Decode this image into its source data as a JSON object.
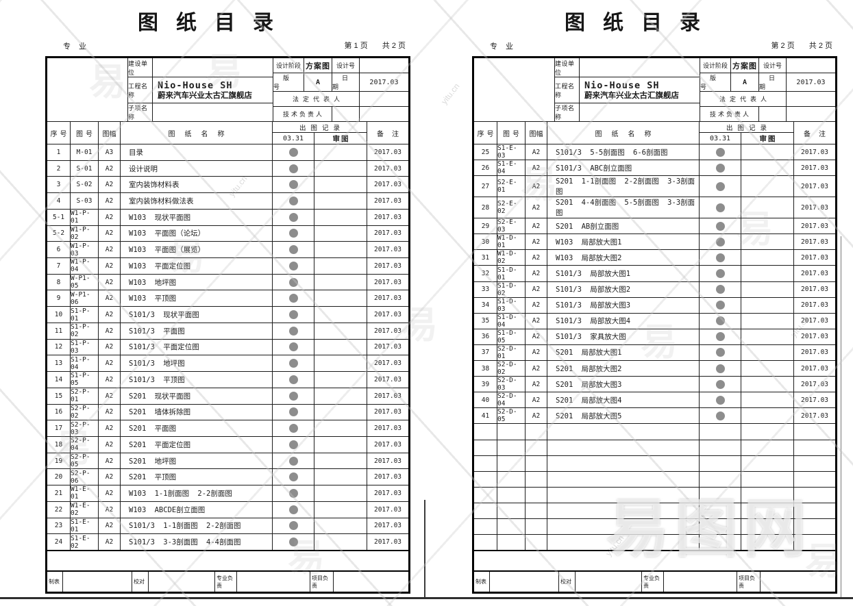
{
  "shared": {
    "title": "图纸目录",
    "specialty_label": "专业",
    "header": {
      "construction_unit_label": "建设单位",
      "project_name_label": "工程名称",
      "project_name_line1": "Nio-House SH",
      "project_name_line2": "蔚来汽车兴业太古汇旗舰店",
      "subitem_label": "子项名称",
      "design_stage_label": "设计阶段",
      "design_stage_value": "方案图",
      "design_no_label": "设计号",
      "design_no_value": "",
      "version_label": "版号",
      "version_value": "A",
      "date_label": "日期",
      "date_value": "2017.03",
      "legal_rep_label": "法定代表人",
      "legal_rep_value": "",
      "tech_lead_label": "技术负责人",
      "tech_lead_value": ""
    },
    "columns": {
      "seq": "序号",
      "code": "图号",
      "size": "图幅",
      "name": "图纸名称",
      "record": "出图记录",
      "record_date": "03.31",
      "review": "审图",
      "remark": "备注"
    },
    "footer": {
      "maker_label": "制表",
      "checker_label": "校对",
      "discipline_lead_label": "专业负责",
      "project_lead_label": "项目负责",
      "maker_value": "",
      "checker_value": "",
      "discipline_lead_value": "",
      "project_lead_value": ""
    }
  },
  "watermark": {
    "site_name": "易图网",
    "logo_char": "易",
    "site_url": "yitu.cn"
  },
  "pages": [
    {
      "page_label": "第 1 页",
      "total_label": "共 2 页",
      "empty_rows": 0,
      "rows": [
        {
          "seq": "1",
          "code": "M-01",
          "size": "A3",
          "name": "目录",
          "issued": true,
          "remark": "2017.03"
        },
        {
          "seq": "2",
          "code": "S-01",
          "size": "A2",
          "name": "设计说明",
          "issued": true,
          "remark": "2017.03"
        },
        {
          "seq": "3",
          "code": "S-02",
          "size": "A2",
          "name": "室内装饰材料表",
          "issued": true,
          "remark": "2017.03"
        },
        {
          "seq": "4",
          "code": "S-03",
          "size": "A2",
          "name": "室内装饰材料做法表",
          "issued": true,
          "remark": "2017.03"
        },
        {
          "seq": "5-1",
          "code": "W1-P-01",
          "size": "A2",
          "name": "W103 现状平面图",
          "issued": true,
          "remark": "2017.03"
        },
        {
          "seq": "5-2",
          "code": "W1-P-02",
          "size": "A2",
          "name": "W103 平面图（论坛）",
          "issued": true,
          "remark": "2017.03"
        },
        {
          "seq": "6",
          "code": "W1-P-03",
          "size": "A2",
          "name": "W103 平面图（展览）",
          "issued": true,
          "remark": "2017.03"
        },
        {
          "seq": "7",
          "code": "W1-P-04",
          "size": "A2",
          "name": "W103 平面定位图",
          "issued": true,
          "remark": "2017.03"
        },
        {
          "seq": "8",
          "code": "W-P1-05",
          "size": "A2",
          "name": "W103 地坪图",
          "issued": true,
          "remark": "2017.03"
        },
        {
          "seq": "9",
          "code": "W-P1-06",
          "size": "A2",
          "name": "W103 平顶图",
          "issued": true,
          "remark": "2017.03"
        },
        {
          "seq": "10",
          "code": "S1-P-01",
          "size": "A2",
          "name": "S101/3 现状平面图",
          "issued": true,
          "remark": "2017.03"
        },
        {
          "seq": "11",
          "code": "S1-P-02",
          "size": "A2",
          "name": "S101/3 平面图",
          "issued": true,
          "remark": "2017.03"
        },
        {
          "seq": "12",
          "code": "S1-P-03",
          "size": "A2",
          "name": "S101/3 平面定位图",
          "issued": true,
          "remark": "2017.03"
        },
        {
          "seq": "13",
          "code": "S1-P-04",
          "size": "A2",
          "name": "S101/3 地坪图",
          "issued": true,
          "remark": "2017.03"
        },
        {
          "seq": "14",
          "code": "S1-P-05",
          "size": "A2",
          "name": "S101/3 平顶图",
          "issued": true,
          "remark": "2017.03"
        },
        {
          "seq": "15",
          "code": "S2-P-01",
          "size": "A2",
          "name": "S201 现状平面图",
          "issued": true,
          "remark": "2017.03"
        },
        {
          "seq": "16",
          "code": "S2-P-02",
          "size": "A2",
          "name": "S201 墙体拆除图",
          "issued": true,
          "remark": "2017.03"
        },
        {
          "seq": "17",
          "code": "S2-P-03",
          "size": "A2",
          "name": "S201 平面图",
          "issued": true,
          "remark": "2017.03"
        },
        {
          "seq": "18",
          "code": "S2-P-04",
          "size": "A2",
          "name": "S201 平面定位图",
          "issued": true,
          "remark": "2017.03"
        },
        {
          "seq": "19",
          "code": "S2-P-05",
          "size": "A2",
          "name": "S201 地坪图",
          "issued": true,
          "remark": "2017.03"
        },
        {
          "seq": "20",
          "code": "S2-P-06",
          "size": "A2",
          "name": "S201 平顶图",
          "issued": true,
          "remark": "2017.03"
        },
        {
          "seq": "21",
          "code": "W1-E-01",
          "size": "A2",
          "name": "W103 1-1剖面图 2-2剖面图",
          "issued": true,
          "remark": "2017.03"
        },
        {
          "seq": "22",
          "code": "W1-E-02",
          "size": "A2",
          "name": "W103 ABCDE剖立面图",
          "issued": true,
          "remark": "2017.03"
        },
        {
          "seq": "23",
          "code": "S1-E-01",
          "size": "A2",
          "name": "S101/3 1-1剖面图 2-2剖面图",
          "issued": true,
          "remark": "2017.03"
        },
        {
          "seq": "24",
          "code": "S1-E-02",
          "size": "A2",
          "name": "S101/3 3-3剖面图 4-4剖面图",
          "issued": true,
          "remark": "2017.03"
        }
      ]
    },
    {
      "page_label": "第 2 页",
      "total_label": "共 2 页",
      "empty_rows": 8,
      "rows": [
        {
          "seq": "25",
          "code": "S1-E-03",
          "size": "A2",
          "name": "S101/3 5-5剖面图 6-6剖面图",
          "issued": true,
          "remark": "2017.03"
        },
        {
          "seq": "26",
          "code": "S1-E-04",
          "size": "A2",
          "name": "S101/3 ABC剖立面图",
          "issued": true,
          "remark": "2017.03"
        },
        {
          "seq": "27",
          "code": "S2-E-01",
          "size": "A2",
          "name": "S201 1-1剖面图 2-2剖面图 3-3剖面图",
          "issued": true,
          "remark": "2017.03"
        },
        {
          "seq": "28",
          "code": "S2-E-02",
          "size": "A2",
          "name": "S201 4-4剖面图 5-5剖面图 3-3剖面图",
          "issued": true,
          "remark": "2017.03"
        },
        {
          "seq": "29",
          "code": "S2-E-03",
          "size": "A2",
          "name": "S201 AB剖立面图",
          "issued": true,
          "remark": "2017.03"
        },
        {
          "seq": "30",
          "code": "W1-D-01",
          "size": "A2",
          "name": "W103 局部放大图1",
          "issued": true,
          "remark": "2017.03"
        },
        {
          "seq": "31",
          "code": "W1-D-02",
          "size": "A2",
          "name": "W103 局部放大图2",
          "issued": true,
          "remark": "2017.03"
        },
        {
          "seq": "32",
          "code": "S1-D-01",
          "size": "A2",
          "name": "S101/3 局部放大图1",
          "issued": true,
          "remark": "2017.03"
        },
        {
          "seq": "33",
          "code": "S1-D-02",
          "size": "A2",
          "name": "S101/3 局部放大图2",
          "issued": true,
          "remark": "2017.03"
        },
        {
          "seq": "34",
          "code": "S1-D-03",
          "size": "A2",
          "name": "S101/3 局部放大图3",
          "issued": true,
          "remark": "2017.03"
        },
        {
          "seq": "35",
          "code": "S1-D-04",
          "size": "A2",
          "name": "S101/3 局部放大图4",
          "issued": true,
          "remark": "2017.03"
        },
        {
          "seq": "36",
          "code": "S1-D-05",
          "size": "A2",
          "name": "S101/3 家具放大图",
          "issued": true,
          "remark": "2017.03"
        },
        {
          "seq": "37",
          "code": "S2-D-01",
          "size": "A2",
          "name": "S201 局部放大图1",
          "issued": true,
          "remark": "2017.03"
        },
        {
          "seq": "38",
          "code": "S2-D-02",
          "size": "A2",
          "name": "S201 局部放大图2",
          "issued": true,
          "remark": "2017.03"
        },
        {
          "seq": "39",
          "code": "S2-D-03",
          "size": "A2",
          "name": "S201 局部放大图3",
          "issued": true,
          "remark": "2017.03"
        },
        {
          "seq": "40",
          "code": "S2-D-04",
          "size": "A2",
          "name": "S201 局部放大图4",
          "issued": true,
          "remark": "2017.03"
        },
        {
          "seq": "41",
          "code": "S2-D-05",
          "size": "A2",
          "name": "S201 局部放大图5",
          "issued": true,
          "remark": "2017.03"
        }
      ]
    }
  ]
}
